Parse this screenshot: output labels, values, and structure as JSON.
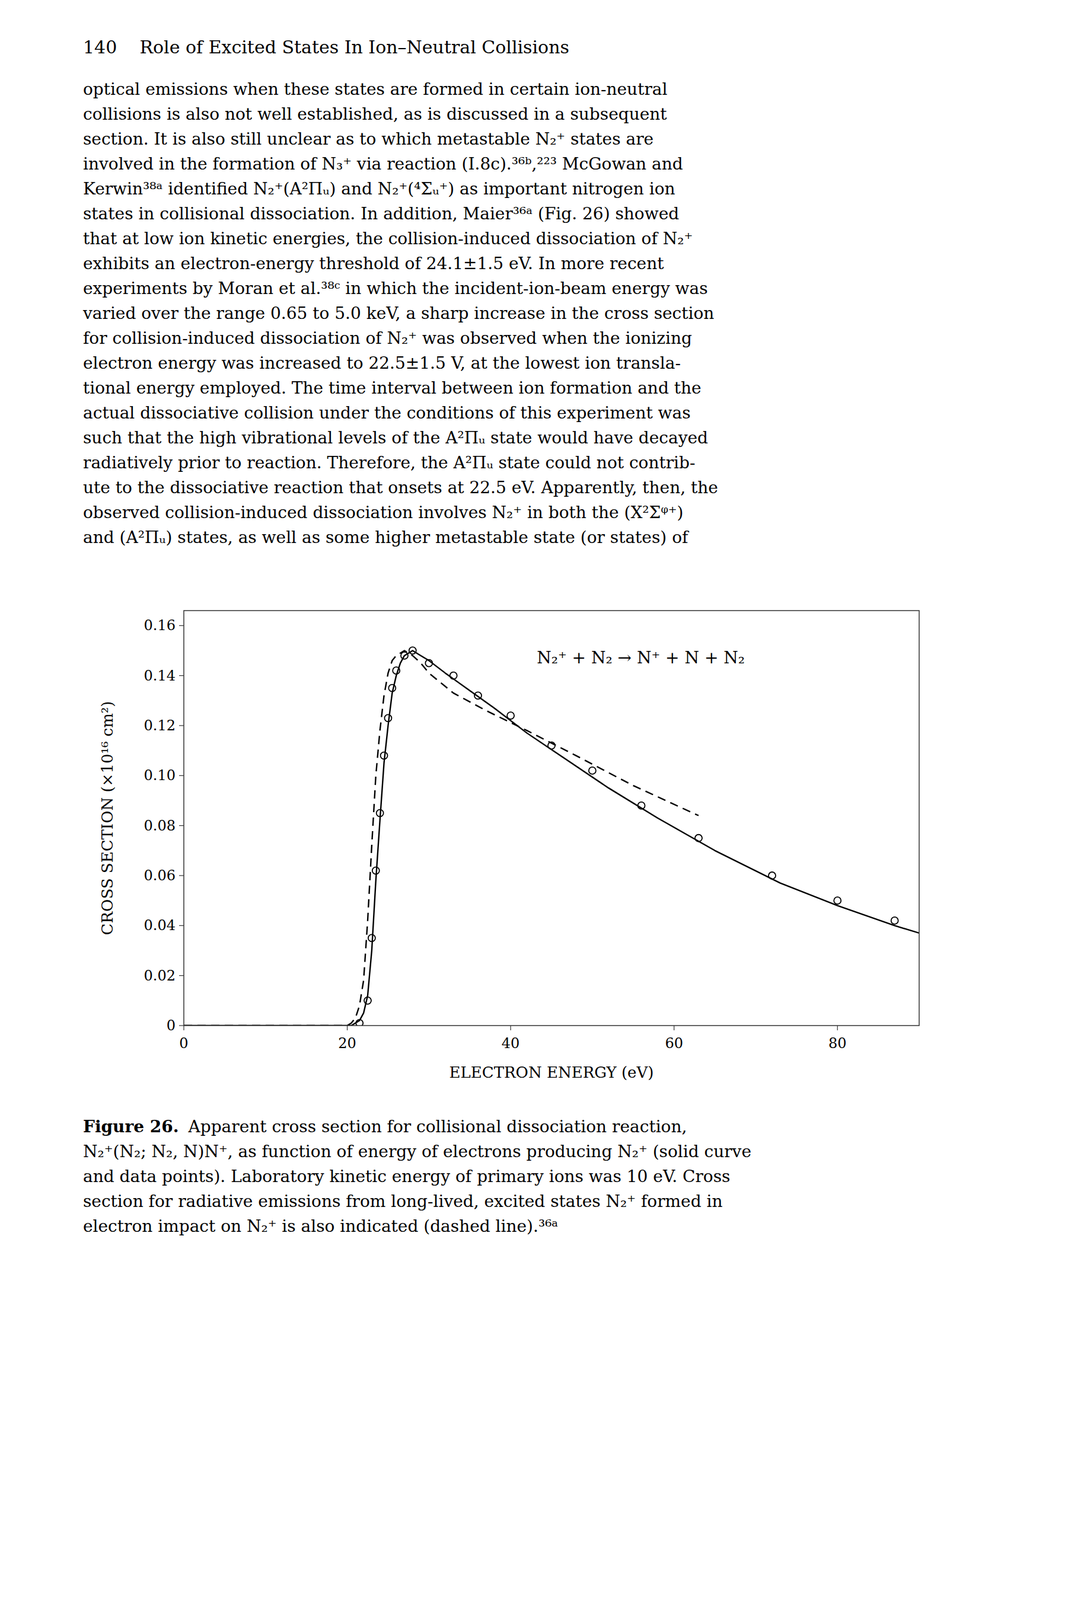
{
  "chart_data": {
    "type": "line",
    "xlabel": "ELECTRON ENERGY (eV)",
    "ylabel": "CROSS SECTION (×10¹⁶ cm²)",
    "annotation": "N₂⁺ + N₂ → N⁺ + N + N₂",
    "xlim": [
      0,
      90
    ],
    "ylim": [
      0,
      0.166
    ],
    "xticks": [
      0,
      20,
      40,
      60,
      80
    ],
    "yticks": [
      0,
      0.02,
      0.04,
      0.06,
      0.08,
      {
        "value": 0.1,
        "label": "0.10"
      },
      0.12,
      0.14,
      0.16
    ],
    "grid": false,
    "series": [
      {
        "type": "line",
        "line_style": "solid",
        "color": "#000000",
        "x": [
          0,
          15,
          19,
          20.5,
          21,
          21.5,
          22,
          22.5,
          23,
          23.5,
          24,
          24.5,
          25,
          25.5,
          26,
          26.5,
          27,
          27.5,
          28,
          29,
          30,
          32,
          35,
          38,
          42,
          47,
          52,
          58,
          65,
          73,
          80,
          87,
          90
        ],
        "values": [
          0,
          0,
          0,
          0.0,
          0.001,
          0.002,
          0.005,
          0.012,
          0.03,
          0.058,
          0.082,
          0.105,
          0.12,
          0.133,
          0.14,
          0.145,
          0.148,
          0.149,
          0.15,
          0.148,
          0.146,
          0.141,
          0.134,
          0.127,
          0.117,
          0.106,
          0.095,
          0.083,
          0.07,
          0.057,
          0.048,
          0.04,
          0.037
        ]
      },
      {
        "type": "line",
        "line_style": "dashed",
        "color": "#000000",
        "x": [
          0,
          15,
          19,
          20,
          20.5,
          21,
          21.5,
          22,
          22.5,
          23,
          23.5,
          24,
          24.5,
          25,
          25.5,
          26,
          26.5,
          27,
          27.5,
          28,
          29,
          30,
          33,
          37,
          42,
          48,
          55,
          63
        ],
        "values": [
          0,
          0,
          0,
          0.0,
          0.001,
          0.003,
          0.008,
          0.018,
          0.042,
          0.072,
          0.1,
          0.118,
          0.132,
          0.141,
          0.146,
          0.148,
          0.149,
          0.15,
          0.149,
          0.148,
          0.145,
          0.141,
          0.133,
          0.126,
          0.118,
          0.108,
          0.096,
          0.084
        ]
      },
      {
        "type": "scatter",
        "marker": "circle",
        "color": "#000000",
        "x": [
          21.5,
          22.5,
          23.0,
          23.5,
          24.0,
          24.5,
          25.0,
          25.5,
          26.0,
          27.0,
          28.0,
          30.0,
          33.0,
          36.0,
          40.0,
          45.0,
          50.0,
          56.0,
          63.0,
          72.0,
          80.0,
          87.0
        ],
        "values": [
          0.001,
          0.01,
          0.035,
          0.062,
          0.085,
          0.108,
          0.123,
          0.135,
          0.142,
          0.148,
          0.15,
          0.145,
          0.14,
          0.132,
          0.124,
          0.112,
          0.102,
          0.088,
          0.075,
          0.06,
          0.05,
          0.042
        ]
      }
    ]
  },
  "page": {
    "header": "140    Role of Excited States In Ion–Neutral Collisions",
    "body": [
      "optical emissions when these states are formed in certain ion-neutral",
      "collisions is also not well established, as is discussed in a subsequent",
      "section. It is also still unclear as to which metastable N₂⁺ states are",
      "involved in the formation of N₃⁺ via reaction (I.8c).³⁶ᵇ,²²³ McGowan and",
      "Kerwin³⁸ᵃ identified N₂⁺(A²Πᵤ) and N₂⁺(⁴Σᵤ⁺) as important nitrogen ion",
      "states in collisional dissociation. In addition, Maier³⁶ᵃ (Fig. 26) showed",
      "that at low ion kinetic energies, the collision-induced dissociation of N₂⁺",
      "exhibits an electron-energy threshold of 24.1±1.5 eV. In more recent",
      "experiments by Moran et al.³⁸ᶜ in which the incident-ion-beam energy was",
      "varied over the range 0.65 to 5.0 keV, a sharp increase in the cross section",
      "for collision-induced dissociation of N₂⁺ was observed when the ionizing",
      "electron energy was increased to 22.5±1.5 V, at the lowest ion transla-",
      "tional energy employed. The time interval between ion formation and the",
      "actual dissociative collision under the conditions of this experiment was",
      "such that the high vibrational levels of the A²Πᵤ state would have decayed",
      "radiatively prior to reaction. Therefore, the A²Πᵤ state could not contrib-",
      "ute to the dissociative reaction that onsets at 22.5 eV. Apparently, then, the",
      "observed collision-induced dissociation involves N₂⁺ in both the (X²Σᵠ⁺)",
      "and (A²Πᵤ) states, as well as some higher metastable state (or states) of"
    ],
    "caption": {
      "label": "Figure 26.",
      "lines": [
        "Apparent cross section for collisional dissociation reaction,",
        "N₂⁺(N₂; N₂, N)N⁺, as function of energy of electrons producing N₂⁺ (solid curve",
        "and data points). Laboratory kinetic energy of primary ions was 10 eV. Cross",
        "section for radiative emissions from long-lived, excited states N₂⁺ formed in",
        "electron impact on N₂⁺ is also indicated (dashed line).³⁶ᵃ"
      ]
    }
  }
}
